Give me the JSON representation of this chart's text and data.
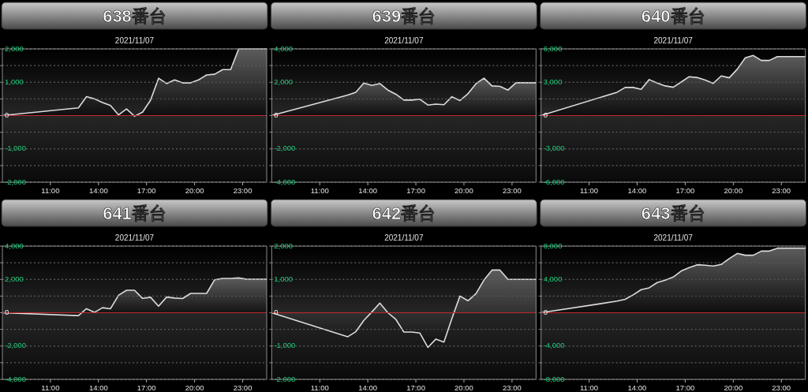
{
  "chart_data": [
    {
      "type": "area",
      "title": "638番台",
      "subtitle": "2021/11/07",
      "x": [
        8,
        12.75,
        13.25,
        13.75,
        14.25,
        14.75,
        15.25,
        15.75,
        16.25,
        16.75,
        17.25,
        17.75,
        18.25,
        18.75,
        19.25,
        19.75,
        20.25,
        20.75,
        21.25,
        21.75,
        22.25,
        22.75,
        23.25,
        24.5
      ],
      "xlim": [
        8,
        24.5
      ],
      "xticks": [
        {
          "value": 11,
          "label": "11:00"
        },
        {
          "value": 14,
          "label": "14:00"
        },
        {
          "value": 17,
          "label": "17:00"
        },
        {
          "value": 20,
          "label": "20:00"
        },
        {
          "value": 23,
          "label": "23:00"
        }
      ],
      "ylim": [
        -2000,
        2000
      ],
      "yticks": [
        {
          "value": -2000,
          "label": "-2,000"
        },
        {
          "value": -1500,
          "label": null
        },
        {
          "value": -1000,
          "label": "-1,000"
        },
        {
          "value": -500,
          "label": null
        },
        {
          "value": 0,
          "label": "0"
        },
        {
          "value": 500,
          "label": null
        },
        {
          "value": 1000,
          "label": "1,000"
        },
        {
          "value": 1500,
          "label": null
        },
        {
          "value": 2000,
          "label": "2,000"
        }
      ],
      "grid": "y",
      "ref_lines": [
        {
          "axis": "y",
          "value": 0,
          "color": "#c0282d"
        }
      ],
      "series": [
        {
          "color": "#dcdcdc",
          "values": [
            0,
            230,
            570,
            500,
            390,
            300,
            20,
            200,
            -20,
            100,
            460,
            1120,
            960,
            1070,
            980,
            980,
            1070,
            1220,
            1240,
            1380,
            1380,
            2000,
            2000,
            2000
          ]
        }
      ]
    },
    {
      "type": "area",
      "title": "639番台",
      "subtitle": "2021/11/07",
      "x": [
        8,
        12.75,
        13.25,
        13.75,
        14.25,
        14.75,
        15.25,
        15.75,
        16.25,
        16.75,
        17.25,
        17.75,
        18.25,
        18.75,
        19.25,
        19.75,
        20.25,
        20.75,
        21.25,
        21.75,
        22.25,
        22.75,
        23.25,
        24.5
      ],
      "xlim": [
        8,
        24.5
      ],
      "xticks": [
        {
          "value": 11,
          "label": "11:00"
        },
        {
          "value": 14,
          "label": "14:00"
        },
        {
          "value": 17,
          "label": "17:00"
        },
        {
          "value": 20,
          "label": "20:00"
        },
        {
          "value": 23,
          "label": "23:00"
        }
      ],
      "ylim": [
        -4000,
        4000
      ],
      "yticks": [
        {
          "value": -4000,
          "label": "-4,000"
        },
        {
          "value": -3000,
          "label": null
        },
        {
          "value": -2000,
          "label": "-2,000"
        },
        {
          "value": -1000,
          "label": null
        },
        {
          "value": 0,
          "label": "0"
        },
        {
          "value": 1000,
          "label": null
        },
        {
          "value": 2000,
          "label": "2,000"
        },
        {
          "value": 3000,
          "label": null
        },
        {
          "value": 4000,
          "label": "4,000"
        }
      ],
      "grid": "y",
      "ref_lines": [
        {
          "axis": "y",
          "value": 0,
          "color": "#c0282d"
        }
      ],
      "series": [
        {
          "color": "#dcdcdc",
          "values": [
            0,
            1230,
            1400,
            1950,
            1810,
            1920,
            1530,
            1280,
            930,
            930,
            980,
            630,
            690,
            650,
            1130,
            900,
            1310,
            1910,
            2240,
            1780,
            1750,
            1530,
            1970,
            1970
          ]
        }
      ]
    },
    {
      "type": "area",
      "title": "640番台",
      "subtitle": "2021/11/07",
      "x": [
        8,
        12.75,
        13.25,
        13.75,
        14.25,
        14.75,
        15.25,
        15.75,
        16.25,
        16.75,
        17.25,
        17.75,
        18.25,
        18.75,
        19.25,
        19.75,
        20.25,
        20.75,
        21.25,
        21.75,
        22.25,
        22.75,
        23.25,
        24.5
      ],
      "xlim": [
        8,
        24.5
      ],
      "xticks": [
        {
          "value": 11,
          "label": "11:00"
        },
        {
          "value": 14,
          "label": "14:00"
        },
        {
          "value": 17,
          "label": "17:00"
        },
        {
          "value": 20,
          "label": "20:00"
        },
        {
          "value": 23,
          "label": "23:00"
        }
      ],
      "ylim": [
        -6000,
        6000
      ],
      "yticks": [
        {
          "value": -6000,
          "label": "-6,000"
        },
        {
          "value": -4500,
          "label": null
        },
        {
          "value": -3000,
          "label": "-3,000"
        },
        {
          "value": -1500,
          "label": null
        },
        {
          "value": 0,
          "label": "0"
        },
        {
          "value": 1500,
          "label": null
        },
        {
          "value": 3000,
          "label": "3,000"
        },
        {
          "value": 4500,
          "label": null
        },
        {
          "value": 6000,
          "label": "6,000"
        }
      ],
      "grid": "y",
      "ref_lines": [
        {
          "axis": "y",
          "value": 0,
          "color": "#c0282d"
        }
      ],
      "series": [
        {
          "color": "#dcdcdc",
          "values": [
            0,
            2100,
            2530,
            2530,
            2360,
            3240,
            2930,
            2670,
            2550,
            3020,
            3500,
            3420,
            3190,
            2900,
            3570,
            3400,
            4180,
            5200,
            5410,
            4960,
            4960,
            5310,
            5310,
            5310
          ]
        }
      ]
    },
    {
      "type": "area",
      "title": "641番台",
      "subtitle": "2021/11/07",
      "x": [
        8,
        12.75,
        13.25,
        13.75,
        14.25,
        14.75,
        15.25,
        15.75,
        16.25,
        16.75,
        17.25,
        17.75,
        18.25,
        18.75,
        19.25,
        19.75,
        20.25,
        20.75,
        21.25,
        21.75,
        22.25,
        22.75,
        23.25,
        24.5
      ],
      "xlim": [
        8,
        24.5
      ],
      "xticks": [
        {
          "value": 11,
          "label": "11:00"
        },
        {
          "value": 14,
          "label": "14:00"
        },
        {
          "value": 17,
          "label": "17:00"
        },
        {
          "value": 20,
          "label": "20:00"
        },
        {
          "value": 23,
          "label": "23:00"
        }
      ],
      "ylim": [
        -4000,
        4000
      ],
      "yticks": [
        {
          "value": -4000,
          "label": "-4,000"
        },
        {
          "value": -3000,
          "label": null
        },
        {
          "value": -2000,
          "label": "-2,000"
        },
        {
          "value": -1000,
          "label": null
        },
        {
          "value": 0,
          "label": "0"
        },
        {
          "value": 1000,
          "label": null
        },
        {
          "value": 2000,
          "label": "2,000"
        },
        {
          "value": 3000,
          "label": null
        },
        {
          "value": 4000,
          "label": "4,000"
        }
      ],
      "grid": "y",
      "ref_lines": [
        {
          "axis": "y",
          "value": 0,
          "color": "#c0282d"
        }
      ],
      "series": [
        {
          "color": "#dcdcdc",
          "values": [
            0,
            -170,
            240,
            20,
            300,
            240,
            1050,
            1350,
            1350,
            860,
            930,
            390,
            940,
            880,
            850,
            1160,
            1160,
            1160,
            1980,
            2060,
            2060,
            2090,
            2010,
            2010
          ]
        }
      ]
    },
    {
      "type": "area",
      "title": "642番台",
      "subtitle": "2021/11/07",
      "x": [
        8,
        12.75,
        13.25,
        13.75,
        14.25,
        14.75,
        15.25,
        15.75,
        16.25,
        16.75,
        17.25,
        17.75,
        18.25,
        18.75,
        19.25,
        19.75,
        20.25,
        20.75,
        21.25,
        21.75,
        22.25,
        22.75,
        23.25,
        24.5
      ],
      "xlim": [
        8,
        24.5
      ],
      "xticks": [
        {
          "value": 11,
          "label": "11:00"
        },
        {
          "value": 14,
          "label": "14:00"
        },
        {
          "value": 17,
          "label": "17:00"
        },
        {
          "value": 20,
          "label": "20:00"
        },
        {
          "value": 23,
          "label": "23:00"
        }
      ],
      "ylim": [
        -2000,
        2000
      ],
      "yticks": [
        {
          "value": -2000,
          "label": "-2,000"
        },
        {
          "value": -1500,
          "label": null
        },
        {
          "value": -1000,
          "label": "-1,000"
        },
        {
          "value": -500,
          "label": null
        },
        {
          "value": 0,
          "label": "0"
        },
        {
          "value": 500,
          "label": null
        },
        {
          "value": 1000,
          "label": "1,000"
        },
        {
          "value": 1500,
          "label": null
        },
        {
          "value": 2000,
          "label": "2,000"
        }
      ],
      "grid": "y",
      "ref_lines": [
        {
          "axis": "y",
          "value": 0,
          "color": "#c0282d"
        }
      ],
      "series": [
        {
          "color": "#dcdcdc",
          "values": [
            0,
            -720,
            -570,
            -230,
            20,
            290,
            0,
            -200,
            -580,
            -580,
            -610,
            -1040,
            -790,
            -880,
            -170,
            500,
            360,
            570,
            980,
            1280,
            1280,
            1000,
            1000,
            1000
          ]
        }
      ]
    },
    {
      "type": "area",
      "title": "643番台",
      "subtitle": "2021/11/07",
      "x": [
        8,
        12.75,
        13.25,
        13.75,
        14.25,
        14.75,
        15.25,
        15.75,
        16.25,
        16.75,
        17.25,
        17.75,
        18.25,
        18.75,
        19.25,
        19.75,
        20.25,
        20.75,
        21.25,
        21.75,
        22.25,
        22.75,
        23.25,
        24.5
      ],
      "xlim": [
        8,
        24.5
      ],
      "xticks": [
        {
          "value": 11,
          "label": "11:00"
        },
        {
          "value": 14,
          "label": "14:00"
        },
        {
          "value": 17,
          "label": "17:00"
        },
        {
          "value": 20,
          "label": "20:00"
        },
        {
          "value": 23,
          "label": "23:00"
        }
      ],
      "ylim": [
        -8000,
        8000
      ],
      "yticks": [
        {
          "value": -8000,
          "label": "-8,000"
        },
        {
          "value": -6000,
          "label": null
        },
        {
          "value": -4000,
          "label": "-4,000"
        },
        {
          "value": -2000,
          "label": null
        },
        {
          "value": 0,
          "label": "0"
        },
        {
          "value": 2000,
          "label": null
        },
        {
          "value": 4000,
          "label": "4,000"
        },
        {
          "value": 6000,
          "label": null
        },
        {
          "value": 8000,
          "label": "8,000"
        }
      ],
      "grid": "y",
      "ref_lines": [
        {
          "axis": "y",
          "value": 0,
          "color": "#c0282d"
        }
      ],
      "series": [
        {
          "color": "#dcdcdc",
          "values": [
            0,
            1390,
            1610,
            2140,
            2770,
            2990,
            3620,
            3910,
            4280,
            5010,
            5420,
            5760,
            5700,
            5610,
            5800,
            6490,
            7120,
            6900,
            6900,
            7400,
            7400,
            7750,
            7750,
            7750
          ]
        }
      ]
    }
  ]
}
